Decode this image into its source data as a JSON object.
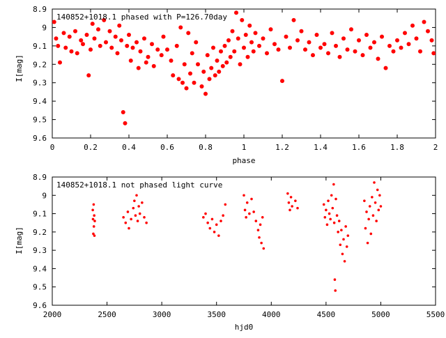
{
  "chart_data": [
    {
      "type": "scatter",
      "title": "140852+1018.1 phased with P=126.70day",
      "xlabel": "phase",
      "ylabel": "I[mag]",
      "xlim": [
        0,
        2
      ],
      "ylim": [
        8.9,
        9.6
      ],
      "y_inverted": true,
      "grid": false,
      "legend": "none",
      "color": "#ff0000",
      "marker": "filled-circle",
      "x_ticks": [
        "0",
        "0.2",
        "0.4",
        "0.6",
        "0.8",
        "1",
        "1.2",
        "1.4",
        "1.6",
        "1.8",
        "2"
      ],
      "y_ticks": [
        "8.9",
        "9",
        "9.1",
        "9.2",
        "9.3",
        "9.4",
        "9.5",
        "9.6"
      ],
      "series": [
        {
          "points": [
            [
              0.01,
              8.97
            ],
            [
              0.02,
              9.06
            ],
            [
              0.03,
              9.1
            ],
            [
              0.04,
              9.19
            ],
            [
              0.06,
              9.03
            ],
            [
              0.07,
              9.11
            ],
            [
              0.09,
              9.05
            ],
            [
              0.1,
              9.13
            ],
            [
              0.12,
              9.02
            ],
            [
              0.13,
              9.14
            ],
            [
              0.15,
              9.07
            ],
            [
              0.16,
              9.09
            ],
            [
              0.18,
              9.04
            ],
            [
              0.19,
              9.26
            ],
            [
              0.2,
              9.12
            ],
            [
              0.21,
              8.98
            ],
            [
              0.22,
              9.06
            ],
            [
              0.24,
              9.01
            ],
            [
              0.25,
              9.1
            ],
            [
              0.27,
              8.96
            ],
            [
              0.28,
              9.08
            ],
            [
              0.3,
              9.02
            ],
            [
              0.31,
              9.11
            ],
            [
              0.33,
              9.05
            ],
            [
              0.34,
              9.14
            ],
            [
              0.35,
              8.99
            ],
            [
              0.36,
              9.07
            ],
            [
              0.37,
              9.46
            ],
            [
              0.38,
              9.52
            ],
            [
              0.39,
              9.1
            ],
            [
              0.4,
              9.04
            ],
            [
              0.41,
              9.18
            ],
            [
              0.42,
              9.11
            ],
            [
              0.44,
              9.08
            ],
            [
              0.45,
              9.22
            ],
            [
              0.46,
              9.13
            ],
            [
              0.48,
              9.06
            ],
            [
              0.49,
              9.19
            ],
            [
              0.5,
              9.16
            ],
            [
              0.52,
              9.09
            ],
            [
              0.53,
              9.21
            ],
            [
              0.55,
              9.12
            ],
            [
              0.57,
              9.15
            ],
            [
              0.58,
              9.05
            ],
            [
              0.6,
              9.12
            ],
            [
              0.62,
              9.18
            ],
            [
              0.63,
              9.26
            ],
            [
              0.65,
              9.1
            ],
            [
              0.66,
              9.28
            ],
            [
              0.67,
              9.0
            ],
            [
              0.68,
              9.3
            ],
            [
              0.69,
              9.2
            ],
            [
              0.7,
              9.33
            ],
            [
              0.71,
              9.03
            ],
            [
              0.72,
              9.25
            ],
            [
              0.73,
              9.14
            ],
            [
              0.74,
              9.3
            ],
            [
              0.75,
              9.08
            ],
            [
              0.76,
              9.2
            ],
            [
              0.78,
              9.32
            ],
            [
              0.79,
              9.24
            ],
            [
              0.8,
              9.36
            ],
            [
              0.81,
              9.15
            ],
            [
              0.82,
              9.28
            ],
            [
              0.83,
              9.22
            ],
            [
              0.84,
              9.11
            ],
            [
              0.85,
              9.26
            ],
            [
              0.86,
              9.18
            ],
            [
              0.87,
              9.24
            ],
            [
              0.88,
              9.13
            ],
            [
              0.89,
              9.21
            ],
            [
              0.9,
              9.1
            ],
            [
              0.91,
              9.19
            ],
            [
              0.92,
              9.07
            ],
            [
              0.93,
              9.16
            ],
            [
              0.94,
              9.02
            ],
            [
              0.95,
              9.13
            ],
            [
              0.96,
              8.92
            ],
            [
              0.97,
              9.06
            ],
            [
              0.98,
              9.2
            ],
            [
              0.99,
              8.96
            ],
            [
              1.0,
              9.11
            ],
            [
              1.01,
              9.04
            ],
            [
              1.02,
              9.16
            ],
            [
              1.03,
              8.99
            ],
            [
              1.04,
              9.08
            ],
            [
              1.05,
              9.13
            ],
            [
              1.06,
              9.03
            ],
            [
              1.08,
              9.1
            ],
            [
              1.1,
              9.06
            ],
            [
              1.12,
              9.14
            ],
            [
              1.14,
              9.01
            ],
            [
              1.16,
              9.09
            ],
            [
              1.18,
              9.12
            ],
            [
              1.2,
              9.29
            ],
            [
              1.22,
              9.05
            ],
            [
              1.24,
              9.11
            ],
            [
              1.26,
              8.96
            ],
            [
              1.28,
              9.07
            ],
            [
              1.3,
              9.02
            ],
            [
              1.32,
              9.12
            ],
            [
              1.34,
              9.08
            ],
            [
              1.36,
              9.15
            ],
            [
              1.38,
              9.04
            ],
            [
              1.4,
              9.11
            ],
            [
              1.42,
              9.09
            ],
            [
              1.44,
              9.14
            ],
            [
              1.46,
              9.03
            ],
            [
              1.48,
              9.1
            ],
            [
              1.5,
              9.16
            ],
            [
              1.52,
              9.06
            ],
            [
              1.54,
              9.12
            ],
            [
              1.56,
              9.01
            ],
            [
              1.58,
              9.13
            ],
            [
              1.6,
              9.07
            ],
            [
              1.62,
              9.15
            ],
            [
              1.64,
              9.04
            ],
            [
              1.66,
              9.11
            ],
            [
              1.68,
              9.08
            ],
            [
              1.7,
              9.17
            ],
            [
              1.72,
              9.05
            ],
            [
              1.74,
              9.22
            ],
            [
              1.76,
              9.1
            ],
            [
              1.78,
              9.13
            ],
            [
              1.8,
              9.07
            ],
            [
              1.82,
              9.11
            ],
            [
              1.84,
              9.03
            ],
            [
              1.86,
              9.09
            ],
            [
              1.88,
              8.99
            ],
            [
              1.9,
              9.06
            ],
            [
              1.92,
              9.13
            ],
            [
              1.94,
              8.97
            ],
            [
              1.96,
              9.02
            ],
            [
              1.98,
              9.07
            ],
            [
              1.99,
              9.14
            ]
          ]
        }
      ]
    },
    {
      "type": "scatter",
      "title": "140852+1018.1 not phased light curve",
      "xlabel": "hjd0",
      "ylabel": "I[mag]",
      "xlim": [
        2000,
        5500
      ],
      "ylim": [
        8.9,
        9.6
      ],
      "y_inverted": true,
      "grid": false,
      "legend": "none",
      "color": "#ff0000",
      "marker": "small-filled-circle",
      "x_ticks": [
        "2000",
        "2500",
        "3000",
        "3500",
        "4000",
        "4500",
        "5000",
        "5500"
      ],
      "y_ticks": [
        "8.9",
        "9",
        "9.1",
        "9.2",
        "9.3",
        "9.4",
        "9.5",
        "9.6"
      ],
      "series": [
        {
          "points": [
            [
              2370,
              9.08
            ],
            [
              2372,
              9.13
            ],
            [
              2375,
              9.21
            ],
            [
              2378,
              9.05
            ],
            [
              2380,
              9.17
            ],
            [
              2383,
              9.11
            ],
            [
              2385,
              9.22
            ],
            [
              2388,
              9.14
            ],
            [
              2650,
              9.12
            ],
            [
              2670,
              9.15
            ],
            [
              2690,
              9.09
            ],
            [
              2700,
              9.18
            ],
            [
              2720,
              9.13
            ],
            [
              2740,
              9.07
            ],
            [
              2750,
              9.03
            ],
            [
              2760,
              9.11
            ],
            [
              2770,
              9.0
            ],
            [
              2780,
              9.14
            ],
            [
              2790,
              9.06
            ],
            [
              2800,
              9.1
            ],
            [
              2820,
              9.04
            ],
            [
              2840,
              9.12
            ],
            [
              2860,
              9.15
            ],
            [
              3380,
              9.12
            ],
            [
              3400,
              9.1
            ],
            [
              3420,
              9.15
            ],
            [
              3440,
              9.18
            ],
            [
              3460,
              9.13
            ],
            [
              3480,
              9.2
            ],
            [
              3500,
              9.16
            ],
            [
              3520,
              9.22
            ],
            [
              3540,
              9.14
            ],
            [
              3560,
              9.11
            ],
            [
              3580,
              9.05
            ],
            [
              3750,
              9.0
            ],
            [
              3760,
              9.08
            ],
            [
              3770,
              9.12
            ],
            [
              3780,
              9.04
            ],
            [
              3800,
              9.1
            ],
            [
              3820,
              9.02
            ],
            [
              3840,
              9.09
            ],
            [
              3860,
              9.14
            ],
            [
              3880,
              9.19
            ],
            [
              3890,
              9.23
            ],
            [
              3900,
              9.16
            ],
            [
              3910,
              9.26
            ],
            [
              3920,
              9.12
            ],
            [
              3930,
              9.29
            ],
            [
              4150,
              8.99
            ],
            [
              4160,
              9.04
            ],
            [
              4170,
              9.08
            ],
            [
              4180,
              9.01
            ],
            [
              4190,
              9.06
            ],
            [
              4220,
              9.03
            ],
            [
              4240,
              9.07
            ],
            [
              4480,
              9.05
            ],
            [
              4490,
              9.12
            ],
            [
              4500,
              9.08
            ],
            [
              4510,
              9.16
            ],
            [
              4520,
              9.03
            ],
            [
              4530,
              9.1
            ],
            [
              4540,
              9.13
            ],
            [
              4550,
              9.0
            ],
            [
              4560,
              9.07
            ],
            [
              4570,
              8.94
            ],
            [
              4575,
              9.15
            ],
            [
              4580,
              9.46
            ],
            [
              4585,
              9.52
            ],
            [
              4590,
              9.02
            ],
            [
              4600,
              9.11
            ],
            [
              4610,
              9.2
            ],
            [
              4620,
              9.14
            ],
            [
              4630,
              9.27
            ],
            [
              4640,
              9.19
            ],
            [
              4650,
              9.32
            ],
            [
              4660,
              9.24
            ],
            [
              4670,
              9.36
            ],
            [
              4680,
              9.17
            ],
            [
              4690,
              9.28
            ],
            [
              4700,
              9.22
            ],
            [
              4850,
              9.03
            ],
            [
              4860,
              9.18
            ],
            [
              4870,
              9.09
            ],
            [
              4880,
              9.26
            ],
            [
              4890,
              9.13
            ],
            [
              4900,
              9.06
            ],
            [
              4910,
              9.21
            ],
            [
              4920,
              9.01
            ],
            [
              4930,
              9.11
            ],
            [
              4940,
              8.93
            ],
            [
              4950,
              9.04
            ],
            [
              4960,
              9.14
            ],
            [
              4970,
              8.97
            ],
            [
              4980,
              9.08
            ],
            [
              4990,
              9.0
            ],
            [
              5000,
              9.06
            ]
          ]
        }
      ]
    }
  ]
}
